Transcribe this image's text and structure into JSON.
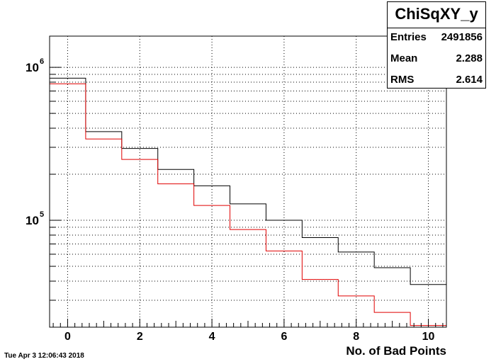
{
  "stats": {
    "title": "ChiSqXY_y",
    "rows": [
      {
        "label": "Entries",
        "value": "2491856"
      },
      {
        "label": "Mean",
        "value": "2.288"
      },
      {
        "label": "RMS",
        "value": "2.614"
      }
    ]
  },
  "timestamp": "Tue Apr  3 12:06:43 2018",
  "chart_data": {
    "type": "line",
    "title": "ChiSqXY_y",
    "xlabel": "No. of Bad Points",
    "ylabel": "",
    "xlim": [
      -0.5,
      10.5
    ],
    "ylim": [
      20000,
      1600000
    ],
    "yscale": "log",
    "grid": true,
    "x_ticks": [
      "0",
      "2",
      "4",
      "6",
      "8",
      "10"
    ],
    "y_ticks": [
      {
        "base": "10",
        "exp": "6"
      },
      {
        "base": "10",
        "exp": "5"
      }
    ],
    "bin_edges": [
      -0.5,
      0.5,
      1.5,
      2.5,
      3.5,
      4.5,
      5.5,
      6.5,
      7.5,
      8.5,
      9.5,
      10.5
    ],
    "series": [
      {
        "color": "#000000",
        "values": [
          850000,
          380000,
          295000,
          215000,
          168000,
          128000,
          100000,
          77000,
          62000,
          49000,
          38000
        ]
      },
      {
        "color": "#e00000",
        "values": [
          780000,
          340000,
          250000,
          173000,
          125000,
          87000,
          63000,
          41000,
          32000,
          25000,
          20500
        ]
      }
    ]
  }
}
